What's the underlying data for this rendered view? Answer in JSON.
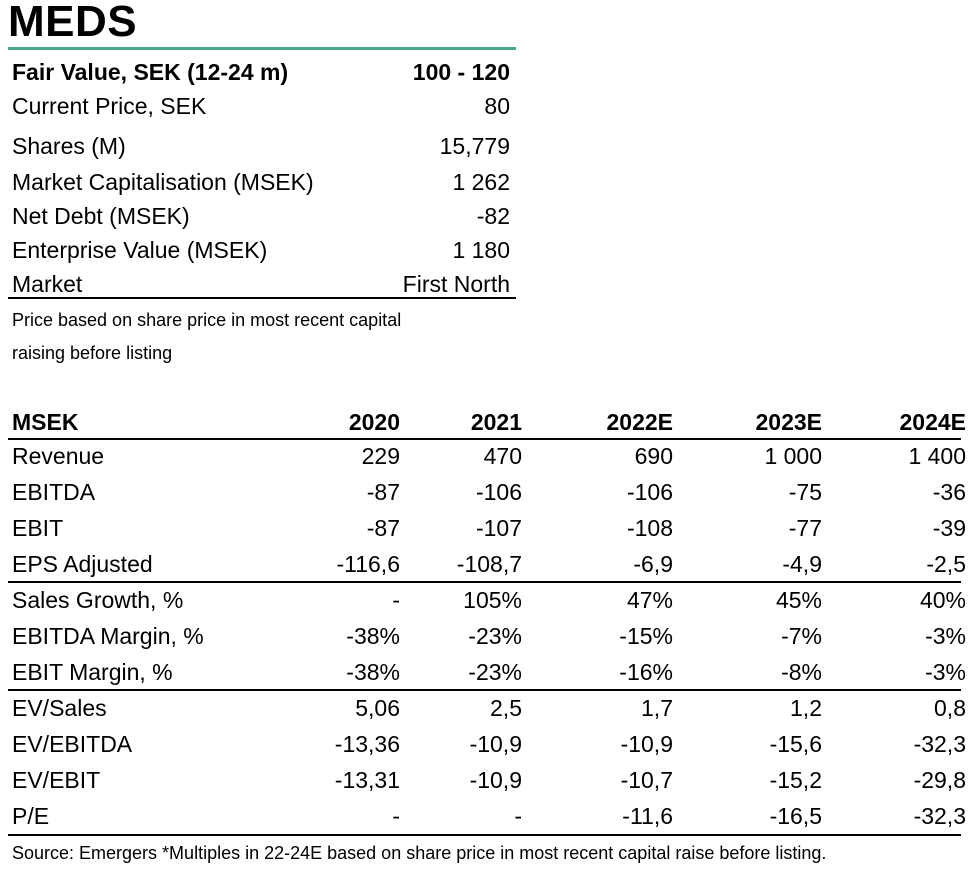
{
  "title": "MEDS",
  "summary": {
    "fair_value_label": "Fair Value, SEK (12-24 m)",
    "fair_value": "100 - 120",
    "rows": [
      {
        "label": "Current Price, SEK",
        "value": "80"
      },
      {
        "label": "Shares (M)",
        "value": "15,779"
      },
      {
        "label": "Market Capitalisation (MSEK)",
        "value": "1 262"
      },
      {
        "label": "Net Debt (MSEK)",
        "value": "-82"
      },
      {
        "label": "Enterprise Value (MSEK)",
        "value": "1 180"
      },
      {
        "label": "Market",
        "value": "First North"
      }
    ],
    "note_line1": "Price based on share price in most recent capital",
    "note_line2": "raising before listing"
  },
  "financials": {
    "header": [
      "MSEK",
      "2020",
      "2021",
      "2022E",
      "2023E",
      "2024E"
    ],
    "rows": [
      {
        "label": "Revenue",
        "values": [
          "229",
          "470",
          "690",
          "1 000",
          "1 400"
        ]
      },
      {
        "label": "EBITDA",
        "values": [
          "-87",
          "-106",
          "-106",
          "-75",
          "-36"
        ]
      },
      {
        "label": "EBIT",
        "values": [
          "-87",
          "-107",
          "-108",
          "-77",
          "-39"
        ]
      },
      {
        "label": "EPS Adjusted",
        "values": [
          "-116,6",
          "-108,7",
          "-6,9",
          "-4,9",
          "-2,5"
        ]
      },
      {
        "label": "Sales Growth, %",
        "values": [
          "-",
          "105%",
          "47%",
          "45%",
          "40%"
        ]
      },
      {
        "label": "EBITDA Margin, %",
        "values": [
          "-38%",
          "-23%",
          "-15%",
          "-7%",
          "-3%"
        ]
      },
      {
        "label": "EBIT Margin, %",
        "values": [
          "-38%",
          "-23%",
          "-16%",
          "-8%",
          "-3%"
        ]
      },
      {
        "label": "EV/Sales",
        "values": [
          "5,06",
          "2,5",
          "1,7",
          "1,2",
          "0,8"
        ]
      },
      {
        "label": "EV/EBITDA",
        "values": [
          "-13,36",
          "-10,9",
          "-10,9",
          "-15,6",
          "-32,3"
        ]
      },
      {
        "label": "EV/EBIT",
        "values": [
          "-13,31",
          "-10,9",
          "-10,7",
          "-15,2",
          "-29,8"
        ]
      },
      {
        "label": "P/E",
        "values": [
          "-",
          "-",
          "-11,6",
          "-16,5",
          "-32,3"
        ]
      }
    ]
  },
  "source": "Source: Emergers *Multiples in 22-24E based on share price in most recent capital raise before listing.",
  "colors": {
    "accent_rule": "#4aaa86",
    "text": "#000000"
  }
}
